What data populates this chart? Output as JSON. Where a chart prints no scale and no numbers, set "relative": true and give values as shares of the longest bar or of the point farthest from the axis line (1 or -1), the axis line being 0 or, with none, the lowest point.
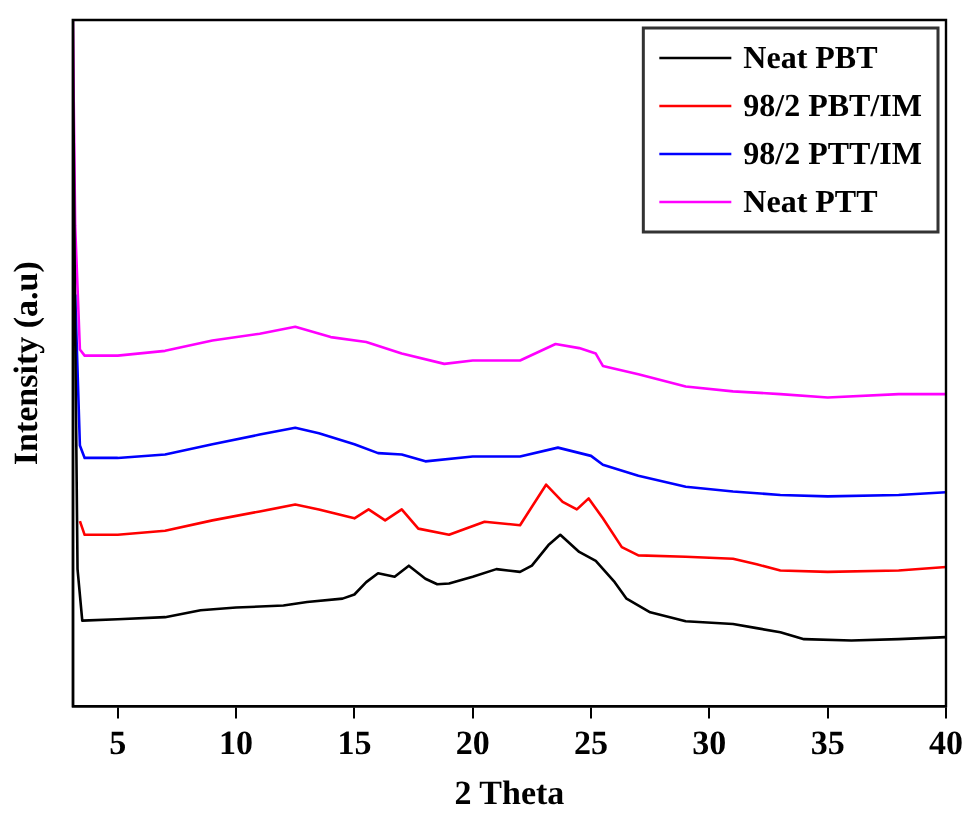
{
  "chart_data": {
    "type": "line",
    "xlabel": "2 Theta",
    "ylabel": "Intensity (a.u)",
    "relative": true,
    "xlim": [
      3.1,
      40
    ],
    "xticks": [
      5,
      10,
      15,
      20,
      25,
      30,
      35,
      40
    ],
    "grid": false,
    "legend": "top right",
    "marker": "none",
    "line_style": "solid",
    "series": [
      {
        "name": "Neat PBT",
        "color": "#000000",
        "x": [
          3.1,
          3.2,
          3.3,
          3.5,
          5,
          7,
          8.5,
          10,
          12,
          13,
          14.5,
          15,
          15.5,
          16,
          16.7,
          17.3,
          18,
          18.5,
          19,
          20,
          21,
          22,
          22.5,
          23.2,
          23.7,
          24.5,
          25.2,
          26,
          26.5,
          27.5,
          29,
          31,
          32,
          33,
          34,
          36,
          38,
          40
        ],
        "values": [
          1.0,
          0.55,
          0.2,
          0.125,
          0.127,
          0.13,
          0.14,
          0.144,
          0.147,
          0.152,
          0.157,
          0.163,
          0.181,
          0.194,
          0.189,
          0.205,
          0.186,
          0.178,
          0.179,
          0.189,
          0.2,
          0.196,
          0.205,
          0.235,
          0.25,
          0.225,
          0.212,
          0.181,
          0.157,
          0.137,
          0.124,
          0.12,
          0.114,
          0.108,
          0.098,
          0.096,
          0.098,
          0.101
        ]
      },
      {
        "name": "98/2 PBT/IM",
        "color": "#ff0000",
        "x": [
          3.4,
          3.6,
          5,
          7,
          9,
          11,
          12.5,
          13.5,
          15,
          15.6,
          16.3,
          17,
          17.7,
          19,
          20.5,
          22,
          23.1,
          23.8,
          24.4,
          24.9,
          25.5,
          26.3,
          27,
          29,
          31,
          32,
          33,
          35,
          38,
          40
        ],
        "values": [
          0.27,
          0.25,
          0.25,
          0.256,
          0.271,
          0.284,
          0.294,
          0.287,
          0.274,
          0.287,
          0.271,
          0.287,
          0.259,
          0.25,
          0.269,
          0.264,
          0.323,
          0.298,
          0.287,
          0.303,
          0.274,
          0.232,
          0.22,
          0.218,
          0.215,
          0.207,
          0.198,
          0.196,
          0.198,
          0.203
        ]
      },
      {
        "name": "98/2 PTT/IM",
        "color": "#0000ff",
        "x": [
          3.2,
          3.4,
          3.6,
          5,
          7,
          9,
          11,
          12.5,
          13.5,
          15,
          16,
          17,
          18,
          20,
          22,
          23.6,
          25,
          25.5,
          27,
          29,
          31,
          33,
          35,
          38,
          40
        ],
        "values": [
          0.6,
          0.38,
          0.362,
          0.362,
          0.367,
          0.382,
          0.396,
          0.406,
          0.398,
          0.382,
          0.369,
          0.367,
          0.357,
          0.364,
          0.364,
          0.377,
          0.365,
          0.352,
          0.336,
          0.32,
          0.313,
          0.308,
          0.306,
          0.308,
          0.312
        ]
      },
      {
        "name": "Neat PTT",
        "color": "#ff00ff",
        "x": [
          3.1,
          3.2,
          3.4,
          3.6,
          5,
          7,
          9,
          11,
          12.5,
          14,
          15.5,
          17,
          18.8,
          20,
          22,
          23.5,
          24.5,
          25.2,
          25.5,
          27,
          29,
          31,
          33,
          35,
          38,
          40
        ],
        "values": [
          1.0,
          0.7,
          0.52,
          0.511,
          0.511,
          0.518,
          0.533,
          0.543,
          0.553,
          0.538,
          0.531,
          0.514,
          0.499,
          0.504,
          0.504,
          0.528,
          0.522,
          0.514,
          0.496,
          0.484,
          0.466,
          0.459,
          0.455,
          0.45,
          0.455,
          0.455
        ]
      }
    ]
  }
}
